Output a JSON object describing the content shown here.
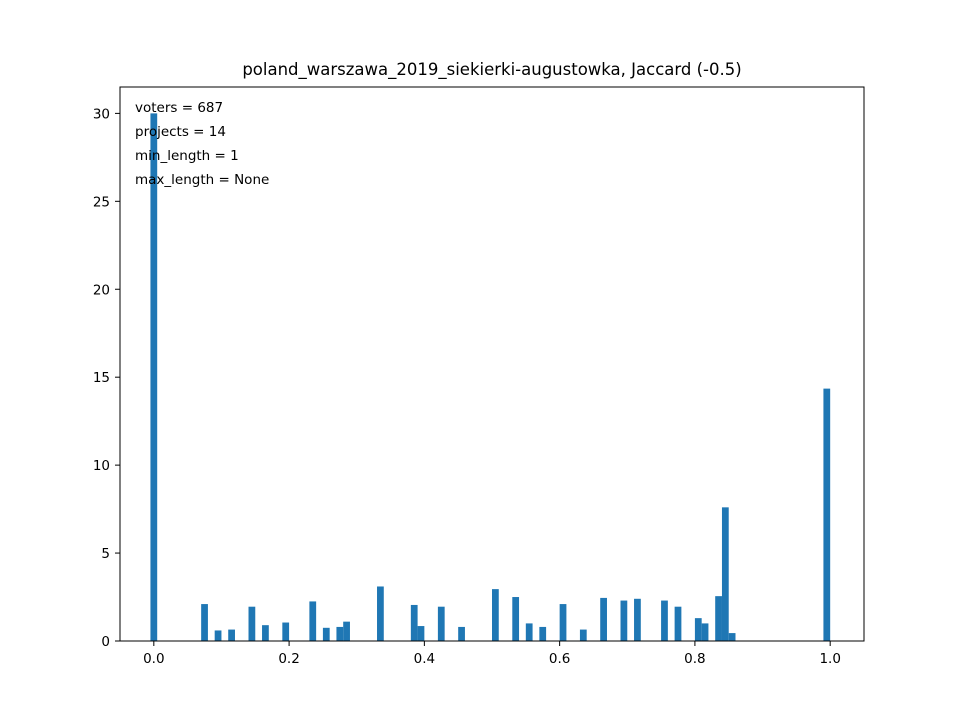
{
  "chart_data": {
    "type": "bar",
    "title": "poland_warszawa_2019_siekierki-augustowka, Jaccard (-0.5)",
    "xlabel": "",
    "ylabel": "",
    "xlim": [
      -0.05,
      1.05
    ],
    "ylim": [
      0,
      31.5
    ],
    "grid": false,
    "bar_color": "#1f77b4",
    "bin_width": 0.01,
    "x_ticks": [
      {
        "value": 0.0,
        "label": "0.0"
      },
      {
        "value": 0.2,
        "label": "0.2"
      },
      {
        "value": 0.4,
        "label": "0.4"
      },
      {
        "value": 0.6,
        "label": "0.6"
      },
      {
        "value": 0.8,
        "label": "0.8"
      },
      {
        "value": 1.0,
        "label": "1.0"
      }
    ],
    "y_ticks": [
      {
        "value": 0,
        "label": "0"
      },
      {
        "value": 5,
        "label": "5"
      },
      {
        "value": 10,
        "label": "10"
      },
      {
        "value": 15,
        "label": "15"
      },
      {
        "value": 20,
        "label": "20"
      },
      {
        "value": 25,
        "label": "25"
      },
      {
        "value": 30,
        "label": "30"
      }
    ],
    "annotations": [
      "voters = 687",
      "projects = 14",
      "min_length = 1",
      "max_length = None"
    ],
    "bars": [
      {
        "x": 0.0,
        "value": 30.0
      },
      {
        "x": 0.075,
        "value": 2.1
      },
      {
        "x": 0.095,
        "value": 0.6
      },
      {
        "x": 0.115,
        "value": 0.65
      },
      {
        "x": 0.145,
        "value": 1.95
      },
      {
        "x": 0.165,
        "value": 0.9
      },
      {
        "x": 0.195,
        "value": 1.05
      },
      {
        "x": 0.235,
        "value": 2.25
      },
      {
        "x": 0.255,
        "value": 0.75
      },
      {
        "x": 0.275,
        "value": 0.8
      },
      {
        "x": 0.285,
        "value": 1.1
      },
      {
        "x": 0.335,
        "value": 3.1
      },
      {
        "x": 0.385,
        "value": 2.05
      },
      {
        "x": 0.395,
        "value": 0.85
      },
      {
        "x": 0.425,
        "value": 1.95
      },
      {
        "x": 0.455,
        "value": 0.8
      },
      {
        "x": 0.505,
        "value": 2.95
      },
      {
        "x": 0.535,
        "value": 2.5
      },
      {
        "x": 0.555,
        "value": 1.0
      },
      {
        "x": 0.575,
        "value": 0.8
      },
      {
        "x": 0.605,
        "value": 2.1
      },
      {
        "x": 0.635,
        "value": 0.65
      },
      {
        "x": 0.665,
        "value": 2.45
      },
      {
        "x": 0.695,
        "value": 2.3
      },
      {
        "x": 0.715,
        "value": 2.4
      },
      {
        "x": 0.755,
        "value": 2.3
      },
      {
        "x": 0.775,
        "value": 1.95
      },
      {
        "x": 0.805,
        "value": 1.3
      },
      {
        "x": 0.815,
        "value": 1.0
      },
      {
        "x": 0.835,
        "value": 2.55
      },
      {
        "x": 0.845,
        "value": 7.6
      },
      {
        "x": 0.855,
        "value": 0.45
      },
      {
        "x": 0.995,
        "value": 14.35
      }
    ]
  }
}
